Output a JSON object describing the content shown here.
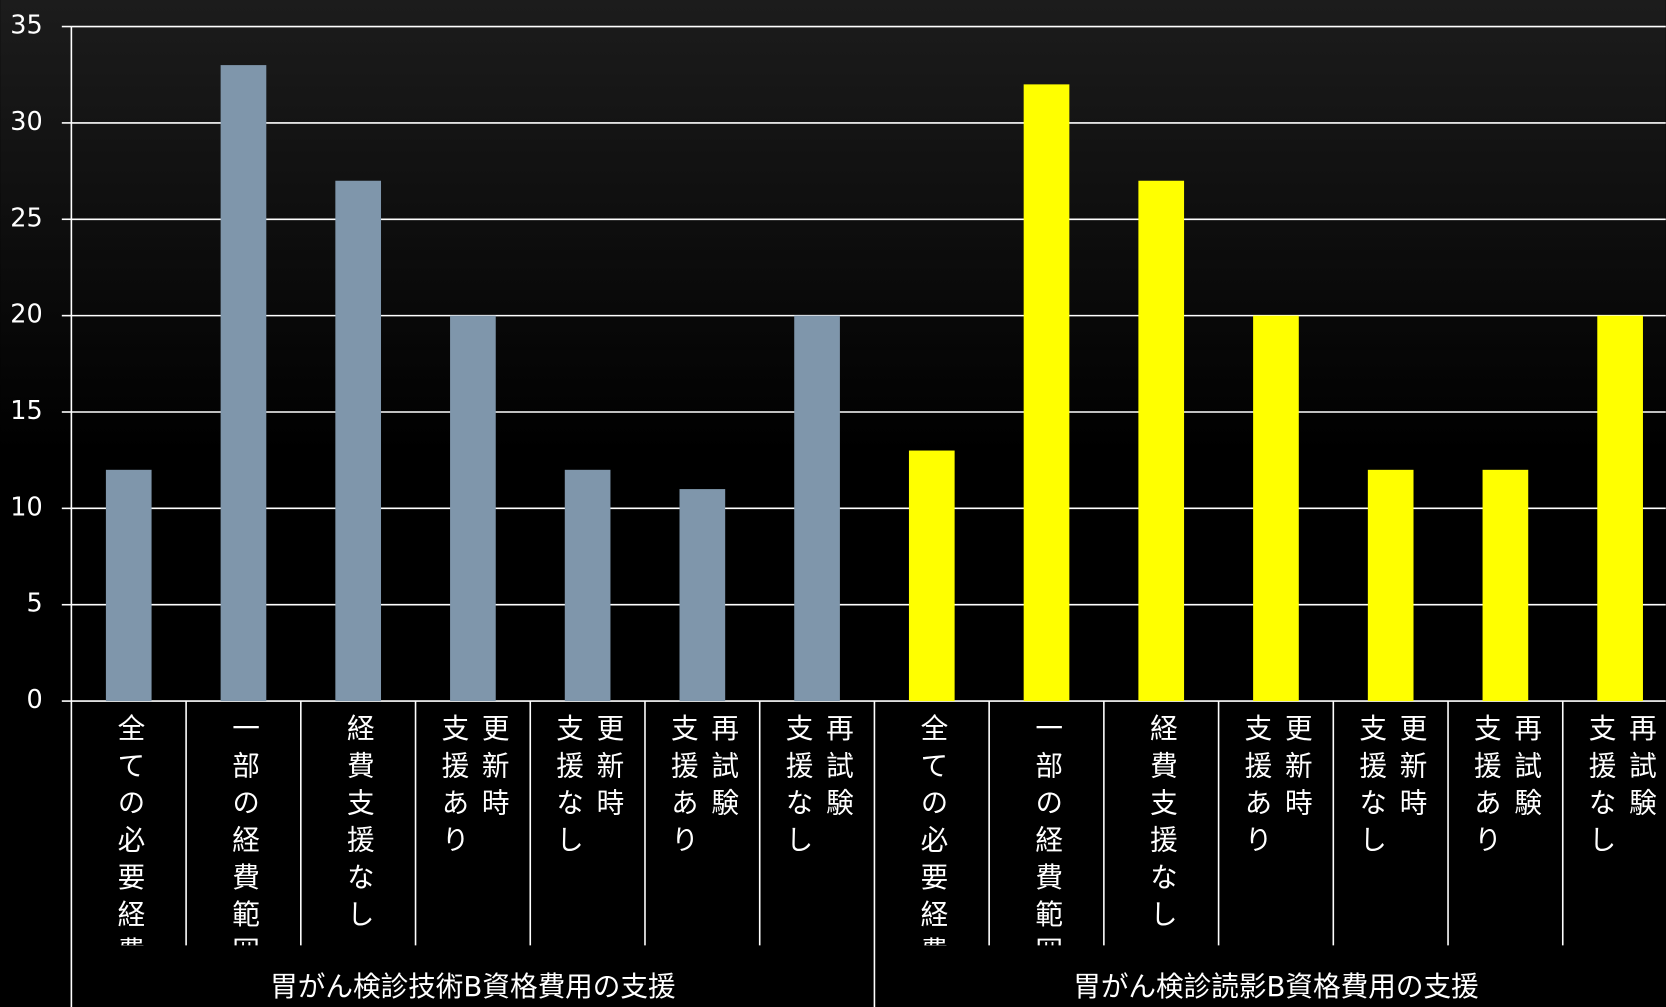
{
  "chart_data": {
    "type": "bar",
    "groups": [
      {
        "label": "胃がん検診技術B資格費用の支援",
        "color": "#7f96ab",
        "categories": [
          "全ての必要経費",
          "一部の経費範囲",
          "経費支援なし",
          "更新時\n支援あり",
          "更新時\n支援なし",
          "再試験\n支援あり",
          "再試験\n支援なし"
        ],
        "values": [
          12,
          33,
          27,
          20,
          12,
          11,
          20
        ]
      },
      {
        "label": "胃がん検診読影B資格費用の支援",
        "color": "#ffff00",
        "categories": [
          "全ての必要経費",
          "一部の経費範囲",
          "経費支援なし",
          "更新時\n支援あり",
          "更新時\n支援なし",
          "再試験\n支援あり",
          "再試験\n支援なし"
        ],
        "values": [
          13,
          32,
          27,
          20,
          12,
          12,
          20
        ]
      }
    ],
    "ylim": [
      0,
      35
    ],
    "yticks": [
      0,
      5,
      10,
      15,
      20,
      25,
      30,
      35
    ],
    "grid": true
  }
}
